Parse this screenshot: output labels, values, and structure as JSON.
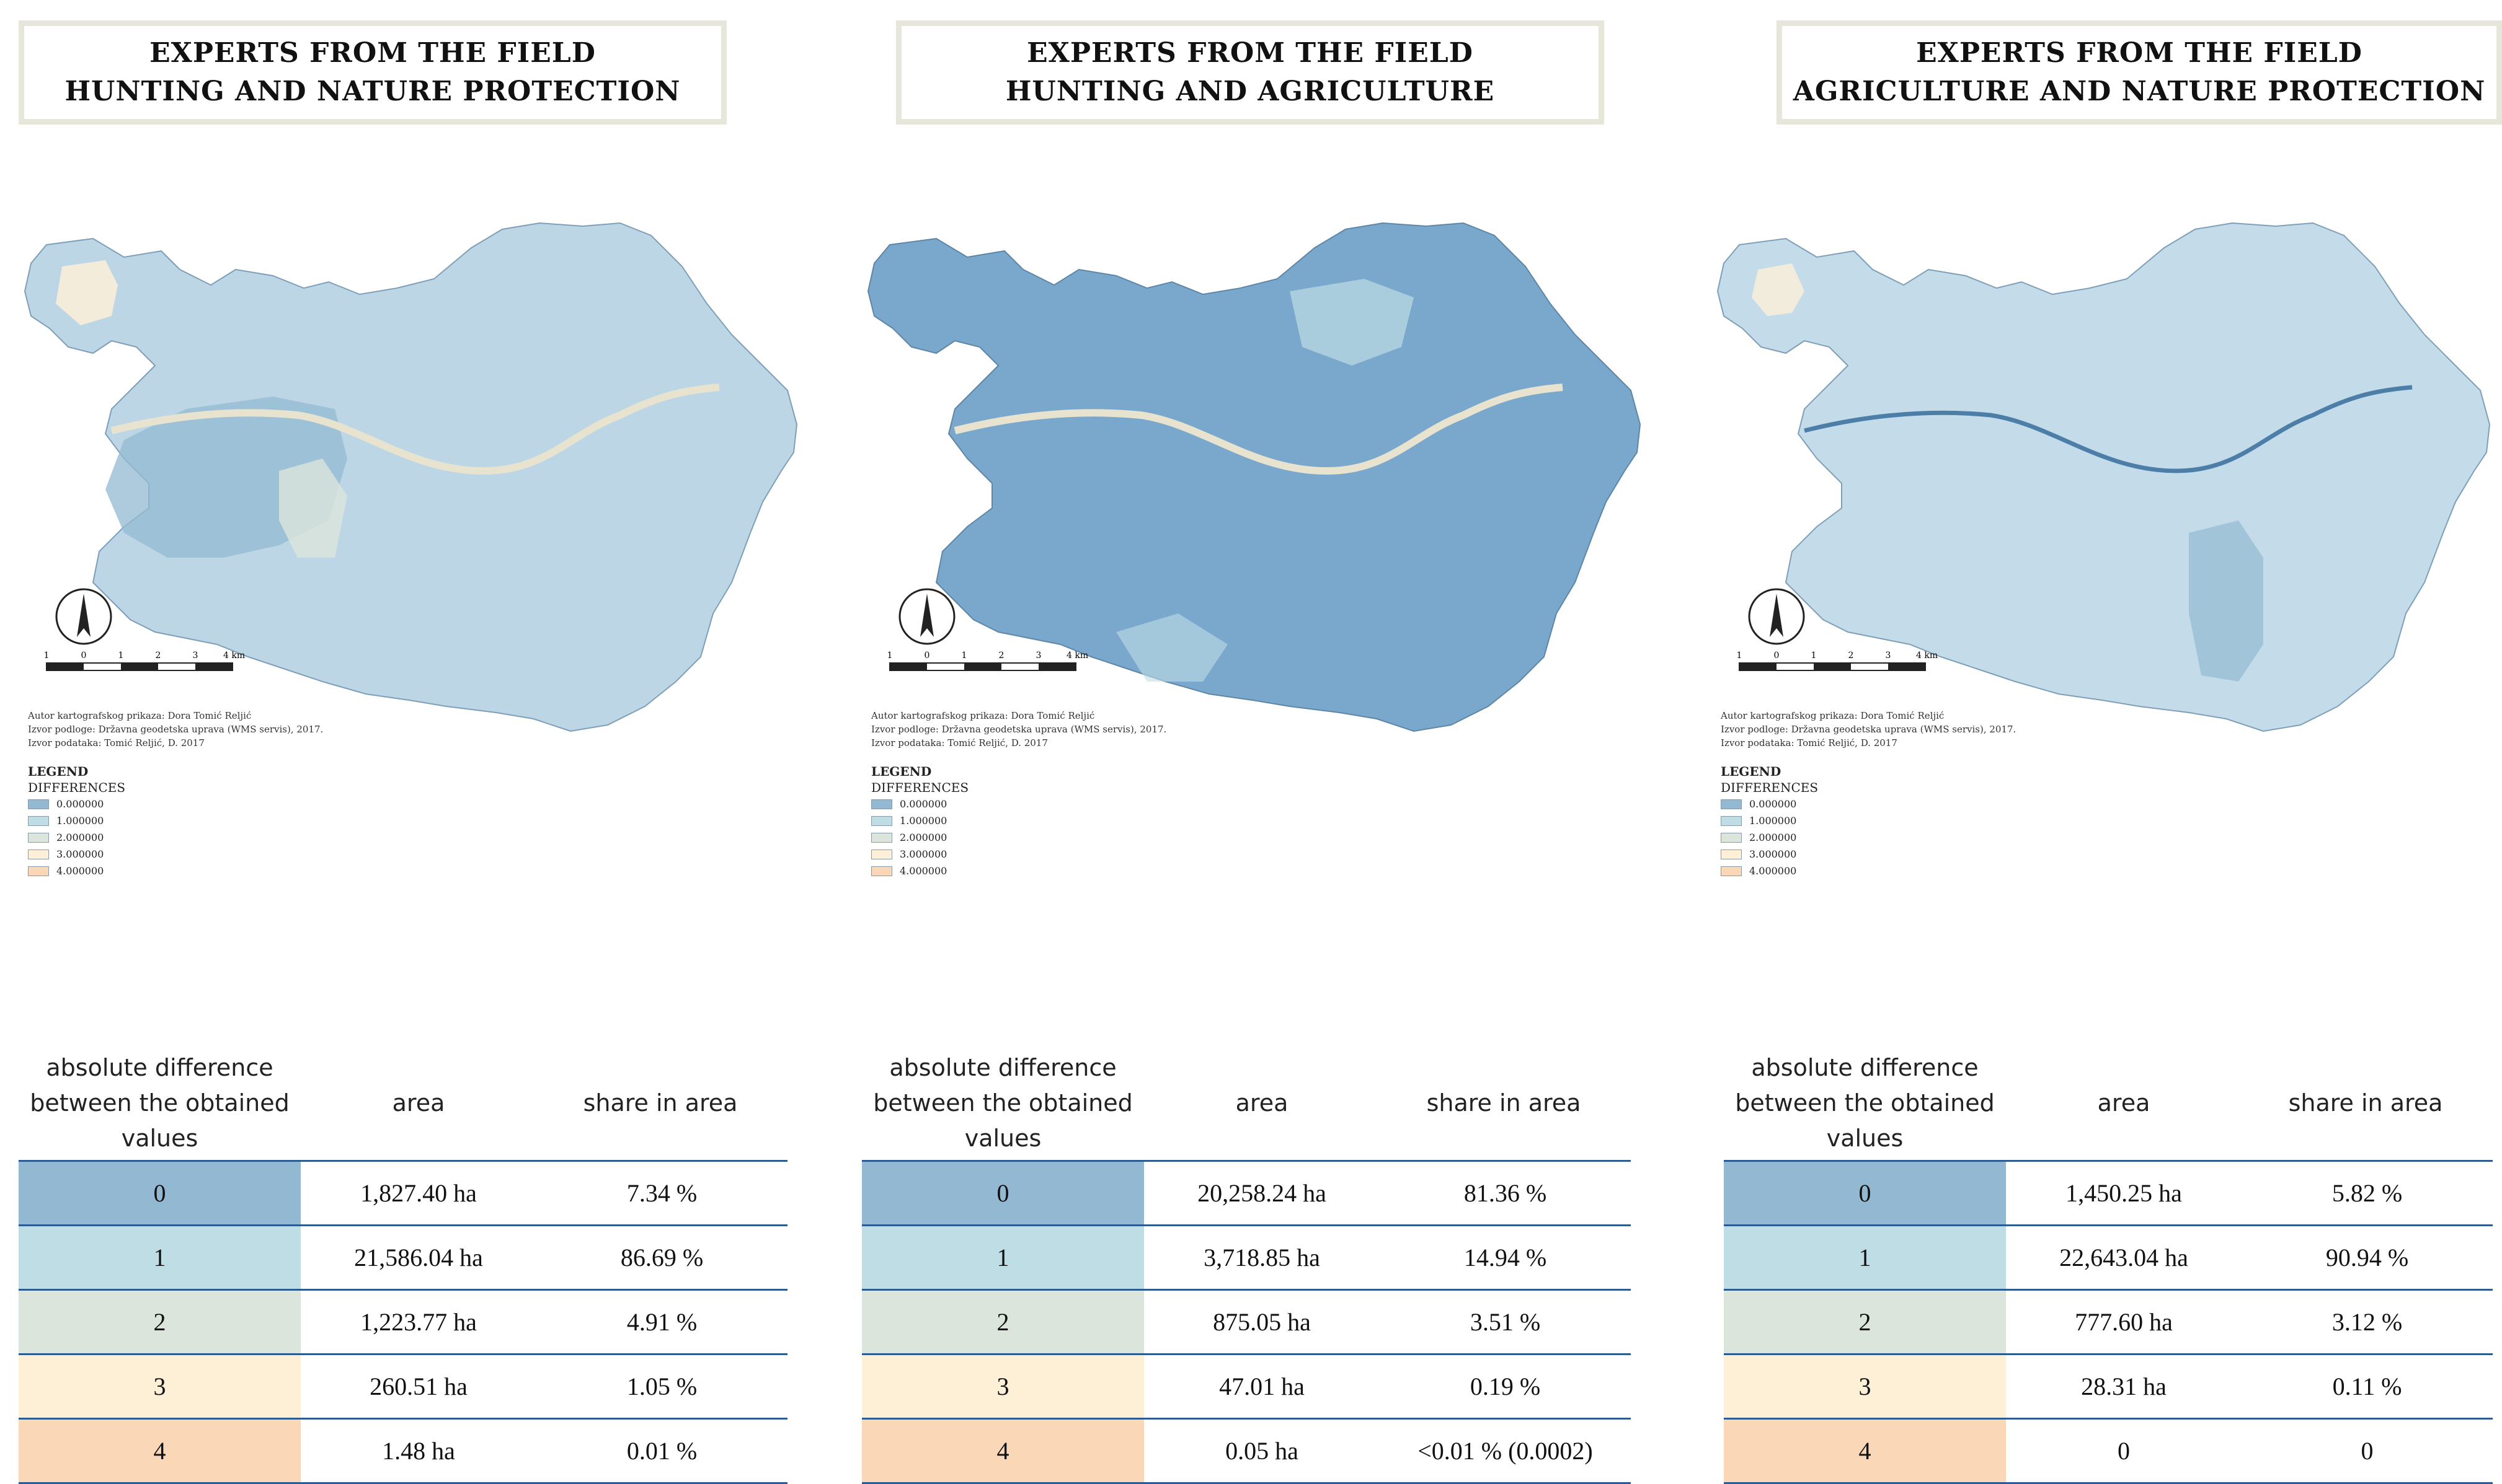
{
  "colors": {
    "class_0": "#93b9d2",
    "class_1": "#bfdde4",
    "class_2": "#dce5dc",
    "class_3": "#fdf0d7",
    "class_4": "#fad7b6",
    "title_border": "#e6e6da",
    "table_rule": "#2c5b92",
    "map_base_light": "#bdd6e6",
    "map_base_dark": "#7aa8cc",
    "river": "#e8e3cf"
  },
  "shared": {
    "legend_title": "LEGEND",
    "legend_subtitle": "DIFFERENCES",
    "legend_items": [
      "0.000000",
      "1.000000",
      "2.000000",
      "3.000000",
      "4.000000"
    ],
    "scale_labels": [
      "1",
      "0",
      "1",
      "2",
      "3",
      "4 km"
    ],
    "credits": [
      "Autor kartografskog prikaza: Dora Tomić Reljić",
      "Izvor podloge: Državna geodetska uprava (WMS servis), 2017.",
      "Izvor podataka: Tomić Reljić, D. 2017"
    ],
    "table_header": {
      "col1": [
        "absolute difference",
        "between the obtained",
        "values"
      ],
      "col2": "area",
      "col3": "share in area"
    },
    "row_labels": [
      "0",
      "1",
      "2",
      "3",
      "4"
    ]
  },
  "panels": [
    {
      "title_line1": "EXPERTS FROM THE FIELD",
      "title_line2": "HUNTING AND NATURE PROTECTION",
      "rows": [
        {
          "area": "1,827.40 ha",
          "share": "7.34 %"
        },
        {
          "area": "21,586.04 ha",
          "share": "86.69 %"
        },
        {
          "area": "1,223.77 ha",
          "share": "4.91 %"
        },
        {
          "area": "260.51 ha",
          "share": "1.05 %"
        },
        {
          "area": "1.48 ha",
          "share": "0.01 %"
        }
      ]
    },
    {
      "title_line1": "EXPERTS FROM THE FIELD",
      "title_line2": "HUNTING AND AGRICULTURE",
      "rows": [
        {
          "area": "20,258.24 ha",
          "share": "81.36 %"
        },
        {
          "area": "3,718.85 ha",
          "share": "14.94 %"
        },
        {
          "area": "875.05 ha",
          "share": "3.51 %"
        },
        {
          "area": "47.01 ha",
          "share": "0.19 %"
        },
        {
          "area": "0.05 ha",
          "share": "<0.01 % (0.0002)"
        }
      ]
    },
    {
      "title_line1": "EXPERTS FROM THE FIELD",
      "title_line2": "AGRICULTURE AND NATURE PROTECTION",
      "rows": [
        {
          "area": "1,450.25 ha",
          "share": "5.82 %"
        },
        {
          "area": "22,643.04 ha",
          "share": "90.94 %"
        },
        {
          "area": "777.60 ha",
          "share": "3.12 %"
        },
        {
          "area": "28.31 ha",
          "share": "0.11 %"
        },
        {
          "area": "0",
          "share": "0"
        }
      ]
    }
  ]
}
